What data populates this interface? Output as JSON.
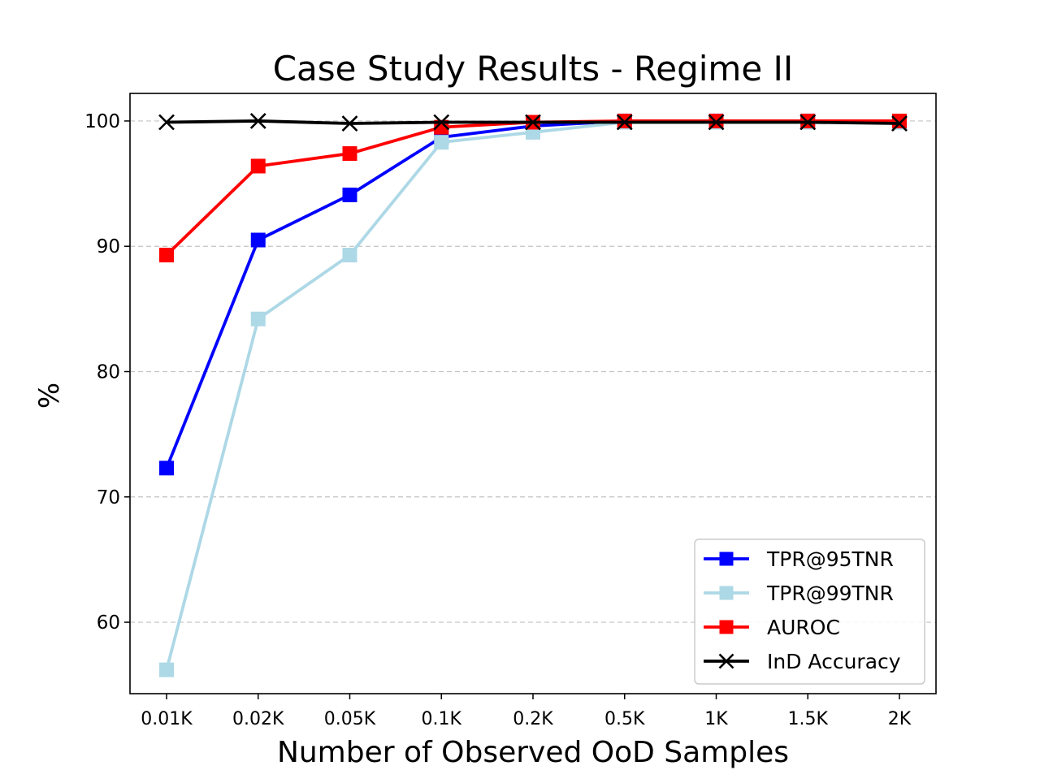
{
  "chart_data": {
    "type": "line",
    "title": "Case Study Results - Regime II",
    "xlabel": "Number of Observed OoD Samples",
    "ylabel": "%",
    "categories": [
      "0.01K",
      "0.02K",
      "0.05K",
      "0.1K",
      "0.2K",
      "0.5K",
      "1K",
      "1.5K",
      "2K"
    ],
    "ylim": [
      54.3,
      102.2
    ],
    "yticks": [
      60,
      70,
      80,
      90,
      100
    ],
    "grid": "horizontal dashed",
    "legend_position": "lower right",
    "series": [
      {
        "name": "TPR@95TNR",
        "color": "#0000ff",
        "marker": "square",
        "values": [
          72.3,
          90.5,
          94.1,
          98.7,
          99.6,
          100.0,
          100.0,
          100.0,
          99.9
        ]
      },
      {
        "name": "TPR@99TNR",
        "color": "#add8e6",
        "marker": "square",
        "values": [
          56.2,
          84.2,
          89.3,
          98.3,
          99.1,
          99.9,
          99.9,
          99.9,
          99.9
        ]
      },
      {
        "name": "AUROC",
        "color": "#ff0000",
        "marker": "square",
        "values": [
          89.3,
          96.4,
          97.4,
          99.5,
          99.9,
          100.0,
          100.0,
          100.0,
          100.0
        ]
      },
      {
        "name": "InD Accuracy",
        "color": "#000000",
        "marker": "x",
        "values": [
          99.9,
          100.0,
          99.8,
          99.9,
          99.9,
          99.9,
          99.9,
          99.9,
          99.8
        ]
      }
    ]
  }
}
